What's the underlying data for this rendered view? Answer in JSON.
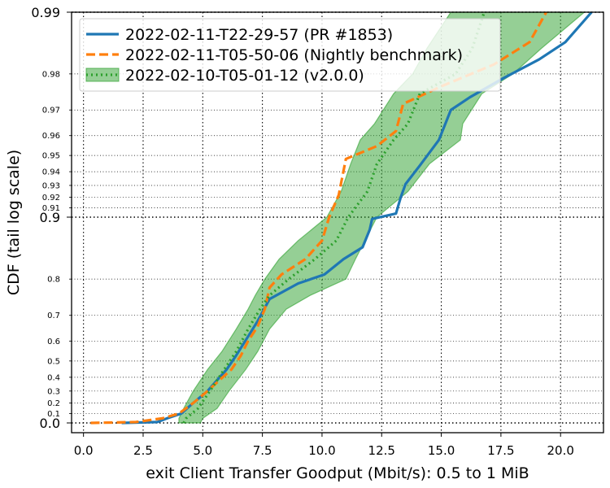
{
  "chart_data": {
    "type": "line",
    "title": "",
    "xlabel": "exit Client Transfer Goodput (Mbit/s): 0.5 to 1 MiB",
    "ylabel": "CDF (tail log scale)",
    "xlim": [
      -0.5,
      21.8
    ],
    "x_ticks": [
      0,
      2.5,
      5,
      7.5,
      10,
      12.5,
      15,
      17.5,
      20
    ],
    "x_tick_labels": [
      "0.0",
      "2.5",
      "5.0",
      "7.5",
      "10.0",
      "12.5",
      "15.0",
      "17.5",
      "20.0"
    ],
    "y_scale": "tail-log",
    "y_ticks_major": [
      {
        "value": 0.0,
        "label": "0.0"
      },
      {
        "value": 0.9,
        "label": "0.9"
      },
      {
        "value": 0.99,
        "label": "0.99"
      }
    ],
    "y_ticks_minor": [
      {
        "value": 0.1,
        "label": "0.1"
      },
      {
        "value": 0.2,
        "label": "0.2"
      },
      {
        "value": 0.3,
        "label": "0.3"
      },
      {
        "value": 0.4,
        "label": "0.4"
      },
      {
        "value": 0.5,
        "label": "0.5"
      },
      {
        "value": 0.6,
        "label": "0.6"
      },
      {
        "value": 0.7,
        "label": "0.7"
      },
      {
        "value": 0.8,
        "label": "0.8"
      },
      {
        "value": 0.91,
        "label": "0.91"
      },
      {
        "value": 0.92,
        "label": "0.92"
      },
      {
        "value": 0.93,
        "label": "0.93"
      },
      {
        "value": 0.94,
        "label": "0.94"
      },
      {
        "value": 0.95,
        "label": "0.95"
      },
      {
        "value": 0.96,
        "label": "0.96"
      },
      {
        "value": 0.97,
        "label": "0.97"
      },
      {
        "value": 0.98,
        "label": "0.98"
      }
    ],
    "grid": true,
    "legend_position": "top-left",
    "series": [
      {
        "name": "2022-02-11-T22-29-57 (PR #1853)",
        "color": "#1f77b4",
        "style": "solid",
        "points": [
          [
            1.6,
            0.0
          ],
          [
            3.1,
            0.01
          ],
          [
            3.5,
            0.05
          ],
          [
            4.1,
            0.1
          ],
          [
            4.6,
            0.2
          ],
          [
            5.2,
            0.3
          ],
          [
            5.6,
            0.38
          ],
          [
            6.0,
            0.45
          ],
          [
            6.4,
            0.53
          ],
          [
            6.9,
            0.62
          ],
          [
            7.3,
            0.68
          ],
          [
            7.8,
            0.75
          ],
          [
            9.0,
            0.79
          ],
          [
            10.1,
            0.81
          ],
          [
            10.9,
            0.84
          ],
          [
            11.7,
            0.86
          ],
          [
            12.0,
            0.885
          ],
          [
            12.1,
            0.898
          ],
          [
            13.1,
            0.904
          ],
          [
            13.3,
            0.92
          ],
          [
            13.5,
            0.931
          ],
          [
            14.1,
            0.944
          ],
          [
            14.9,
            0.958
          ],
          [
            15.4,
            0.97
          ],
          [
            16.2,
            0.974
          ],
          [
            17.6,
            0.979
          ],
          [
            19.1,
            0.983
          ],
          [
            20.2,
            0.986
          ],
          [
            21.3,
            0.99
          ]
        ]
      },
      {
        "name": "2022-02-11-T05-50-06 (Nightly benchmark)",
        "color": "#ff7f0e",
        "style": "dashed",
        "points": [
          [
            0.3,
            0.0
          ],
          [
            2.2,
            0.01
          ],
          [
            3.3,
            0.05
          ],
          [
            4.0,
            0.1
          ],
          [
            4.6,
            0.2
          ],
          [
            5.2,
            0.3
          ],
          [
            5.7,
            0.38
          ],
          [
            6.2,
            0.45
          ],
          [
            6.6,
            0.53
          ],
          [
            6.9,
            0.6
          ],
          [
            7.3,
            0.66
          ],
          [
            7.6,
            0.72
          ],
          [
            7.8,
            0.78
          ],
          [
            8.3,
            0.81
          ],
          [
            9.3,
            0.84
          ],
          [
            10.0,
            0.87
          ],
          [
            10.3,
            0.9
          ],
          [
            10.7,
            0.922
          ],
          [
            11.0,
            0.948
          ],
          [
            12.3,
            0.955
          ],
          [
            13.1,
            0.962
          ],
          [
            13.4,
            0.972
          ],
          [
            15.0,
            0.977
          ],
          [
            17.2,
            0.982
          ],
          [
            18.7,
            0.986
          ],
          [
            19.4,
            0.99
          ]
        ]
      },
      {
        "name": "2022-02-10-T05-01-12 (v2.0.0)",
        "color": "#2ca02c",
        "style": "dotted",
        "points": [
          [
            4.2,
            0.0
          ],
          [
            4.3,
            0.05
          ],
          [
            4.8,
            0.15
          ],
          [
            5.3,
            0.3
          ],
          [
            5.9,
            0.45
          ],
          [
            6.4,
            0.55
          ],
          [
            6.9,
            0.65
          ],
          [
            7.4,
            0.72
          ],
          [
            7.8,
            0.76
          ],
          [
            8.6,
            0.8
          ],
          [
            9.7,
            0.84
          ],
          [
            10.6,
            0.87
          ],
          [
            11.1,
            0.9
          ],
          [
            11.9,
            0.925
          ],
          [
            12.3,
            0.945
          ],
          [
            13.0,
            0.958
          ],
          [
            13.6,
            0.965
          ],
          [
            14.1,
            0.975
          ],
          [
            15.6,
            0.98
          ],
          [
            16.3,
            0.985
          ],
          [
            16.8,
            0.99
          ]
        ],
        "band": {
          "lower": [
            [
              4.0,
              0.0
            ],
            [
              4.0,
              0.05
            ],
            [
              4.2,
              0.15
            ],
            [
              4.6,
              0.3
            ],
            [
              5.2,
              0.45
            ],
            [
              5.8,
              0.55
            ],
            [
              6.4,
              0.65
            ],
            [
              6.9,
              0.72
            ],
            [
              7.2,
              0.76
            ],
            [
              7.6,
              0.8
            ],
            [
              8.2,
              0.84
            ],
            [
              9.0,
              0.87
            ],
            [
              10.2,
              0.9
            ],
            [
              10.8,
              0.925
            ],
            [
              11.2,
              0.945
            ],
            [
              11.6,
              0.958
            ],
            [
              12.2,
              0.965
            ],
            [
              13.0,
              0.975
            ],
            [
              13.8,
              0.98
            ],
            [
              14.4,
              0.985
            ],
            [
              15.4,
              0.99
            ]
          ],
          "upper": [
            [
              4.9,
              0.0
            ],
            [
              5.0,
              0.05
            ],
            [
              5.6,
              0.15
            ],
            [
              6.1,
              0.3
            ],
            [
              6.8,
              0.45
            ],
            [
              7.3,
              0.55
            ],
            [
              7.8,
              0.65
            ],
            [
              8.5,
              0.72
            ],
            [
              9.5,
              0.76
            ],
            [
              11.0,
              0.8
            ],
            [
              11.4,
              0.84
            ],
            [
              11.8,
              0.87
            ],
            [
              12.3,
              0.9
            ],
            [
              13.6,
              0.925
            ],
            [
              14.5,
              0.945
            ],
            [
              15.8,
              0.958
            ],
            [
              15.9,
              0.965
            ],
            [
              16.7,
              0.975
            ],
            [
              18.0,
              0.98
            ],
            [
              19.2,
              0.985
            ],
            [
              21.0,
              0.99
            ]
          ]
        }
      }
    ]
  }
}
